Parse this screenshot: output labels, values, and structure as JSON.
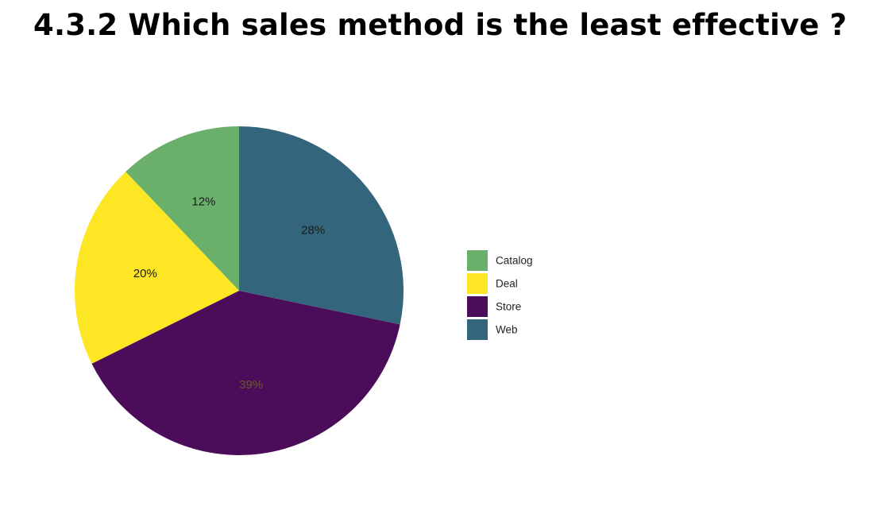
{
  "page": {
    "title": "4.3.2 Which sales method is the least effective ?"
  },
  "chart_data": {
    "type": "pie",
    "title": "",
    "categories": [
      "Catalog",
      "Deal",
      "Store",
      "Web"
    ],
    "values": [
      12,
      20,
      39,
      28
    ],
    "labels": [
      "12%",
      "20%",
      "39%",
      "28%"
    ],
    "colors": [
      "#6aaf6a",
      "#fde725",
      "#4b0c59",
      "#33667c"
    ],
    "label_colors": [
      "#1a1a1a",
      "#1a1a1a",
      "#6b5a2a",
      "#1a1a1a"
    ],
    "start": "top",
    "direction": "counterclockwise",
    "legend": {
      "position": "right",
      "entries": [
        "Catalog",
        "Deal",
        "Store",
        "Web"
      ]
    }
  }
}
